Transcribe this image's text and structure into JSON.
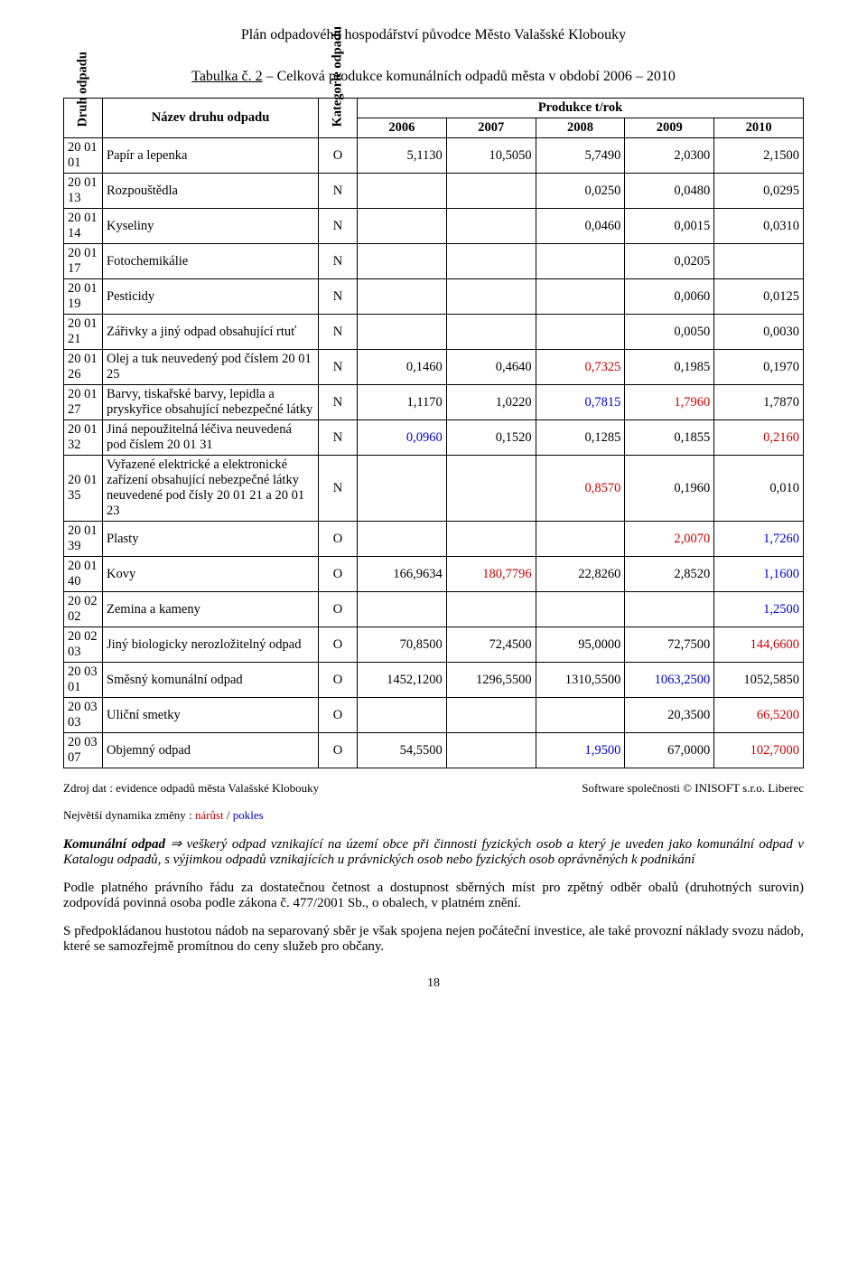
{
  "header": "Plán odpadového hospodářství původce Město Valašské Klobouky",
  "caption_prefix": "Tabulka č. 2",
  "caption_rest": " – Celková produkce komunálních odpadů města v období 2006 – 2010",
  "table": {
    "col_druh": "Druh odpadu",
    "col_nazev": "Název druhu odpadu",
    "col_kat": "Kategorie odpadu",
    "col_prod": "Produkce t/rok",
    "years": [
      "2006",
      "2007",
      "2008",
      "2009",
      "2010"
    ],
    "rows": [
      {
        "code": "20 01 01",
        "name": "Papír a lepenka",
        "cat": "O",
        "v": [
          "5,1130",
          "10,5050",
          "5,7490",
          "2,0300",
          "2,1500"
        ],
        "cls": [
          "",
          "",
          "",
          "",
          ""
        ]
      },
      {
        "code": "20 01 13",
        "name": "Rozpouštědla",
        "cat": "N",
        "v": [
          "",
          "",
          "0,0250",
          "0,0480",
          "0,0295"
        ],
        "cls": [
          "",
          "",
          "",
          "",
          ""
        ]
      },
      {
        "code": "20 01 14",
        "name": "Kyseliny",
        "cat": "N",
        "v": [
          "",
          "",
          "0,0460",
          "0,0015",
          "0,0310"
        ],
        "cls": [
          "",
          "",
          "",
          "",
          ""
        ]
      },
      {
        "code": "20 01 17",
        "name": "Fotochemikálie",
        "cat": "N",
        "v": [
          "",
          "",
          "",
          "0,0205",
          ""
        ],
        "cls": [
          "",
          "",
          "",
          "",
          ""
        ]
      },
      {
        "code": "20 01 19",
        "name": "Pesticidy",
        "cat": "N",
        "v": [
          "",
          "",
          "",
          "0,0060",
          "0,0125"
        ],
        "cls": [
          "",
          "",
          "",
          "",
          ""
        ]
      },
      {
        "code": "20 01 21",
        "name": "Zářivky a jiný odpad obsahující rtuť",
        "cat": "N",
        "v": [
          "",
          "",
          "",
          "0,0050",
          "0,0030"
        ],
        "cls": [
          "",
          "",
          "",
          "",
          ""
        ]
      },
      {
        "code": "20 01 26",
        "name": "Olej a tuk neuvedený pod číslem             20 01 25",
        "cat": "N",
        "v": [
          "0,1460",
          "0,4640",
          "0,7325",
          "0,1985",
          "0,1970"
        ],
        "cls": [
          "",
          "",
          "red",
          "",
          ""
        ]
      },
      {
        "code": "20 01 27",
        "name": "Barvy, tiskařské barvy, lepidla a pryskyřice obsahující nebezpečné látky",
        "cat": "N",
        "v": [
          "1,1170",
          "1,0220",
          "0,7815",
          "1,7960",
          "1,7870"
        ],
        "cls": [
          "",
          "",
          "blue",
          "red",
          ""
        ]
      },
      {
        "code": "20 01 32",
        "name": "Jiná nepoužitelná léčiva neuvedená pod číslem        20 01 31",
        "cat": "N",
        "v": [
          "0,0960",
          "0,1520",
          "0,1285",
          "0,1855",
          "0,2160"
        ],
        "cls": [
          "blue",
          "",
          "",
          "",
          "red"
        ]
      },
      {
        "code": "20 01 35",
        "name": "Vyřazené elektrické a elektronické zařízení obsahující nebezpečné látky neuvedené pod čísly           20 01 21 a  20 01 23",
        "cat": "N",
        "v": [
          "",
          "",
          "0,8570",
          "0,1960",
          "0,010"
        ],
        "cls": [
          "",
          "",
          "red",
          "",
          ""
        ]
      },
      {
        "code": "20 01 39",
        "name": "Plasty",
        "cat": "O",
        "v": [
          "",
          "",
          "",
          "2,0070",
          "1,7260"
        ],
        "cls": [
          "",
          "",
          "",
          "red",
          "blue"
        ]
      },
      {
        "code": "20 01 40",
        "name": "Kovy",
        "cat": "O",
        "v": [
          "166,9634",
          "180,7796",
          "22,8260",
          "2,8520",
          "1,1600"
        ],
        "cls": [
          "",
          "red",
          "",
          "",
          "blue"
        ]
      },
      {
        "code": "20 02 02",
        "name": "Zemina a kameny",
        "cat": "O",
        "v": [
          "",
          "",
          "",
          "",
          "1,2500"
        ],
        "cls": [
          "",
          "",
          "",
          "",
          "blue"
        ]
      },
      {
        "code": "20 02 03",
        "name": "Jiný biologicky nerozložitelný odpad",
        "cat": "O",
        "v": [
          "70,8500",
          "72,4500",
          "95,0000",
          "72,7500",
          "144,6600"
        ],
        "cls": [
          "",
          "",
          "",
          "",
          "red"
        ]
      },
      {
        "code": "20 03 01",
        "name": "Směsný komunální odpad",
        "cat": "O",
        "v": [
          "1452,1200",
          "1296,5500",
          "1310,5500",
          "1063,2500",
          "1052,5850"
        ],
        "cls": [
          "",
          "",
          "",
          "blue",
          ""
        ]
      },
      {
        "code": "20 03 03",
        "name": "Uliční smetky",
        "cat": "O",
        "v": [
          "",
          "",
          "",
          "20,3500",
          "66,5200"
        ],
        "cls": [
          "",
          "",
          "",
          "",
          "red"
        ]
      },
      {
        "code": "20 03 07",
        "name": "Objemný odpad",
        "cat": "O",
        "v": [
          "54,5500",
          "",
          "1,9500",
          "67,0000",
          "102,7000"
        ],
        "cls": [
          "",
          "",
          "blue",
          "",
          "red"
        ]
      }
    ]
  },
  "source_left": "Zdroj dat : evidence odpadů města Valašské Klobouky",
  "source_right": "Software společnosti © INISOFT s.r.o. Liberec",
  "dynamic_prefix": "Největší dynamika změny : ",
  "dynamic_red": "nárůst",
  "dynamic_sep": " / ",
  "dynamic_blue": "pokles",
  "para1_lead": "Komunální odpad",
  "para1_arrow": " ⇒ ",
  "para1_body": "veškerý odpad vznikající na území obce při činnosti fyzických osob a který je uveden jako komunální odpad v Katalogu odpadů, s výjimkou odpadů vznikajících u právnických osob nebo fyzických osob oprávněných k podnikání",
  "para2": "Podle platného právního řádu za dostatečnou četnost a dostupnost sběrných míst pro zpětný odběr obalů (druhotných surovin) zodpovídá povinná osoba podle zákona č. 477/2001 Sb., o obalech, v platném znění.",
  "para3": "S předpokládanou hustotou nádob na separovaný sběr je však spojena nejen počáteční investice, ale také provozní náklady svozu nádob, které se samozřejmě promítnou do ceny služeb pro občany.",
  "page_num": "18"
}
